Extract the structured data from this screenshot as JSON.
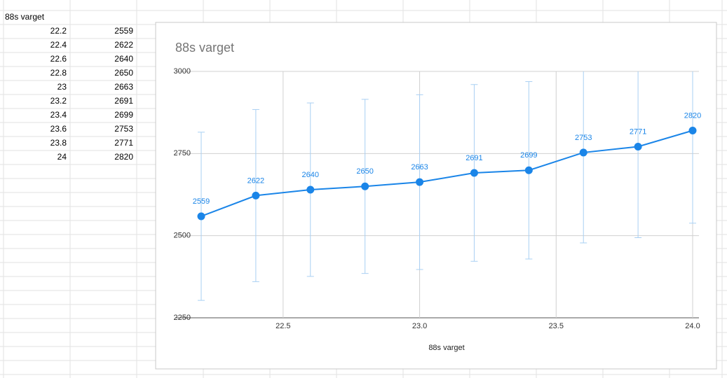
{
  "sheet": {
    "header": "88s varget"
  },
  "chart_data": {
    "type": "line",
    "title": "88s varget",
    "x_label": "88s varget",
    "x": [
      22.2,
      22.4,
      22.6,
      22.8,
      23,
      23.2,
      23.4,
      23.6,
      23.8,
      24
    ],
    "series": [
      {
        "name": "88s varget",
        "color": "#1a85e8",
        "values": [
          2559,
          2622,
          2640,
          2650,
          2663,
          2691,
          2699,
          2753,
          2771,
          2820
        ],
        "errors": [
          256,
          262,
          264,
          265,
          266,
          269,
          270,
          275,
          277,
          282
        ],
        "error_color": "#a9d0f3"
      }
    ],
    "xlim": [
      22.2,
      24
    ],
    "xticks": [
      22.5,
      {
        "value": 23,
        "label": "23.0"
      },
      23.5,
      {
        "value": 24,
        "label": "24.0"
      }
    ],
    "ylim": [
      2250,
      3000
    ],
    "yticks": [
      2250,
      2500,
      2750,
      3000
    ],
    "grid": true,
    "data_labels": true
  }
}
